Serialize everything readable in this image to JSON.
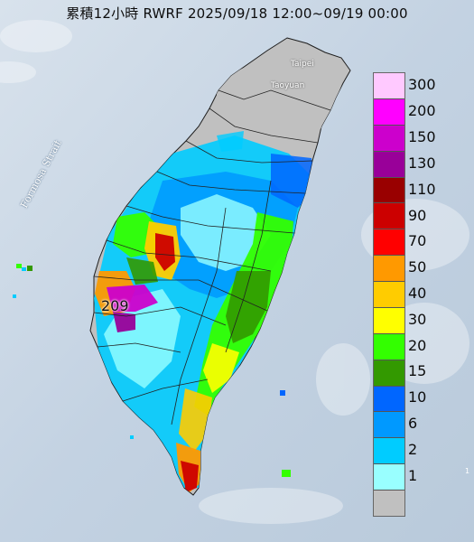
{
  "title": "累積12小時 RWRF 2025/09/18 12:00~09/19 00:00",
  "labels": {
    "strait": "Formosa Strait",
    "taipei": "Taipei",
    "taoyuan": "Taoyuan",
    "peak": "209",
    "edge_mark": "1"
  },
  "legend": {
    "items": [
      {
        "label": "300",
        "color": "#ffc9ff"
      },
      {
        "label": "200",
        "color": "#ff00ff"
      },
      {
        "label": "150",
        "color": "#cc00cc"
      },
      {
        "label": "130",
        "color": "#990099"
      },
      {
        "label": "110",
        "color": "#990000"
      },
      {
        "label": "90",
        "color": "#cc0000"
      },
      {
        "label": "70",
        "color": "#ff0000"
      },
      {
        "label": "50",
        "color": "#ff9900"
      },
      {
        "label": "40",
        "color": "#ffcc00"
      },
      {
        "label": "30",
        "color": "#ffff00"
      },
      {
        "label": "20",
        "color": "#33ff00"
      },
      {
        "label": "15",
        "color": "#339900"
      },
      {
        "label": "10",
        "color": "#0066ff"
      },
      {
        "label": "6",
        "color": "#0099ff"
      },
      {
        "label": "2",
        "color": "#00ccff"
      },
      {
        "label": "1",
        "color": "#99ffff"
      },
      {
        "label": "",
        "color": "#c0c0c0"
      }
    ]
  },
  "colors": {
    "ocean": "#c9d6e3",
    "land_base": "#bfbfbf",
    "county_border": "#222222"
  }
}
